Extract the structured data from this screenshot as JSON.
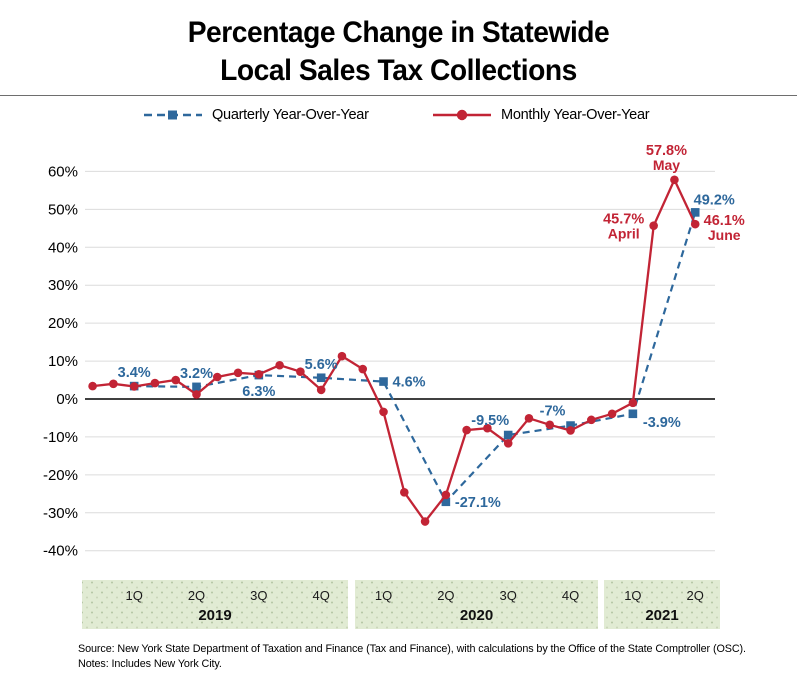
{
  "title": {
    "line1": "Percentage Change in Statewide",
    "line2": "Local Sales Tax Collections"
  },
  "legend": [
    {
      "label": "Quarterly Year-Over-Year",
      "series": "quarterly"
    },
    {
      "label": "Monthly Year-Over-Year",
      "series": "monthly"
    }
  ],
  "colors": {
    "quarterly": "#2e689c",
    "monthly": "#c22435",
    "grid": "#dcdcdc",
    "zero_line": "#000000",
    "band_fill": "#e1ebd3",
    "band_dot": "#a9bb97",
    "rule": "#6e6e6e"
  },
  "chart_data": {
    "type": "line",
    "title": "Percentage Change in Statewide Local Sales Tax Collections",
    "xlabel": "",
    "ylabel": "",
    "ylim": [
      -40,
      60
    ],
    "grid": "horizontal",
    "legend_position": "top",
    "y_ticks": [
      "60%",
      "50%",
      "40%",
      "30%",
      "20%",
      "10%",
      "0%",
      "-10%",
      "-20%",
      "-30%",
      "-40%"
    ],
    "y_tick_values": [
      60,
      50,
      40,
      30,
      20,
      10,
      0,
      -10,
      -20,
      -30,
      -40
    ],
    "x_months": [
      "Jan 2019",
      "Feb 2019",
      "Mar 2019",
      "Apr 2019",
      "May 2019",
      "Jun 2019",
      "Jul 2019",
      "Aug 2019",
      "Sep 2019",
      "Oct 2019",
      "Nov 2019",
      "Dec 2019",
      "Jan 2020",
      "Feb 2020",
      "Mar 2020",
      "Apr 2020",
      "May 2020",
      "Jun 2020",
      "Jul 2020",
      "Aug 2020",
      "Sep 2020",
      "Oct 2020",
      "Nov 2020",
      "Dec 2020",
      "Jan 2021",
      "Feb 2021",
      "Mar 2021",
      "Apr 2021",
      "May 2021",
      "Jun 2021"
    ],
    "series": [
      {
        "name": "Monthly Year-Over-Year",
        "style": "solid",
        "marker": "circle",
        "color": "#c22435",
        "values": [
          3.4,
          4.0,
          3.3,
          4.2,
          5.0,
          1.2,
          5.8,
          6.9,
          6.5,
          8.9,
          7.2,
          2.4,
          11.3,
          7.9,
          -3.4,
          -24.6,
          -32.3,
          -25.3,
          -8.2,
          -7.7,
          -11.7,
          -5.1,
          -6.8,
          -8.3,
          -5.5,
          -3.9,
          -1.0,
          45.7,
          57.8,
          46.1
        ]
      },
      {
        "name": "Quarterly Year-Over-Year",
        "style": "dashed",
        "marker": "square",
        "color": "#2e689c",
        "quarters": [
          "1Q 2019",
          "2Q 2019",
          "3Q 2019",
          "4Q 2019",
          "1Q 2020",
          "2Q 2020",
          "3Q 2020",
          "4Q 2020",
          "1Q 2021",
          "2Q 2021"
        ],
        "month_indices": [
          2,
          5,
          8,
          11,
          14,
          17,
          20,
          23,
          26,
          29
        ],
        "values": [
          3.4,
          3.2,
          6.3,
          5.6,
          4.6,
          -27.1,
          -9.5,
          -7,
          -3.9,
          49.2
        ]
      }
    ],
    "quarterly_point_labels": [
      {
        "text": "3.4%",
        "pos": "above"
      },
      {
        "text": "3.2%",
        "pos": "above"
      },
      {
        "text": "6.3%",
        "pos": "below"
      },
      {
        "text": "5.6%",
        "pos": "above"
      },
      {
        "text": "4.6%",
        "pos": "right"
      },
      {
        "text": "-27.1%",
        "pos": "right"
      },
      {
        "text": "-9.5%",
        "pos": "above-left"
      },
      {
        "text": "-7%",
        "pos": "above-left"
      },
      {
        "text": "-3.9%",
        "pos": "right-below"
      },
      {
        "text": "49.2%",
        "pos": "above-right"
      }
    ],
    "monthly_point_labels": [
      {
        "text": "45.7%",
        "sub": "April",
        "month_index": 27,
        "pos": "left"
      },
      {
        "text": "57.8%",
        "sub": "May",
        "month_index": 28,
        "pos": "above"
      },
      {
        "text": "46.1%",
        "sub": "June",
        "month_index": 29,
        "pos": "right"
      }
    ],
    "x_axis_bands": [
      {
        "year": "2019",
        "quarters": [
          "1Q",
          "2Q",
          "3Q",
          "4Q"
        ]
      },
      {
        "year": "2020",
        "quarters": [
          "1Q",
          "2Q",
          "3Q",
          "4Q"
        ]
      },
      {
        "year": "2021",
        "quarters": [
          "1Q",
          "2Q"
        ]
      }
    ]
  },
  "footer": {
    "source": "Source: New York State Department of Taxation and Finance (Tax and Finance), with calculations by the Office of the State Comptroller (OSC).",
    "notes": "Notes: Includes New York City."
  }
}
